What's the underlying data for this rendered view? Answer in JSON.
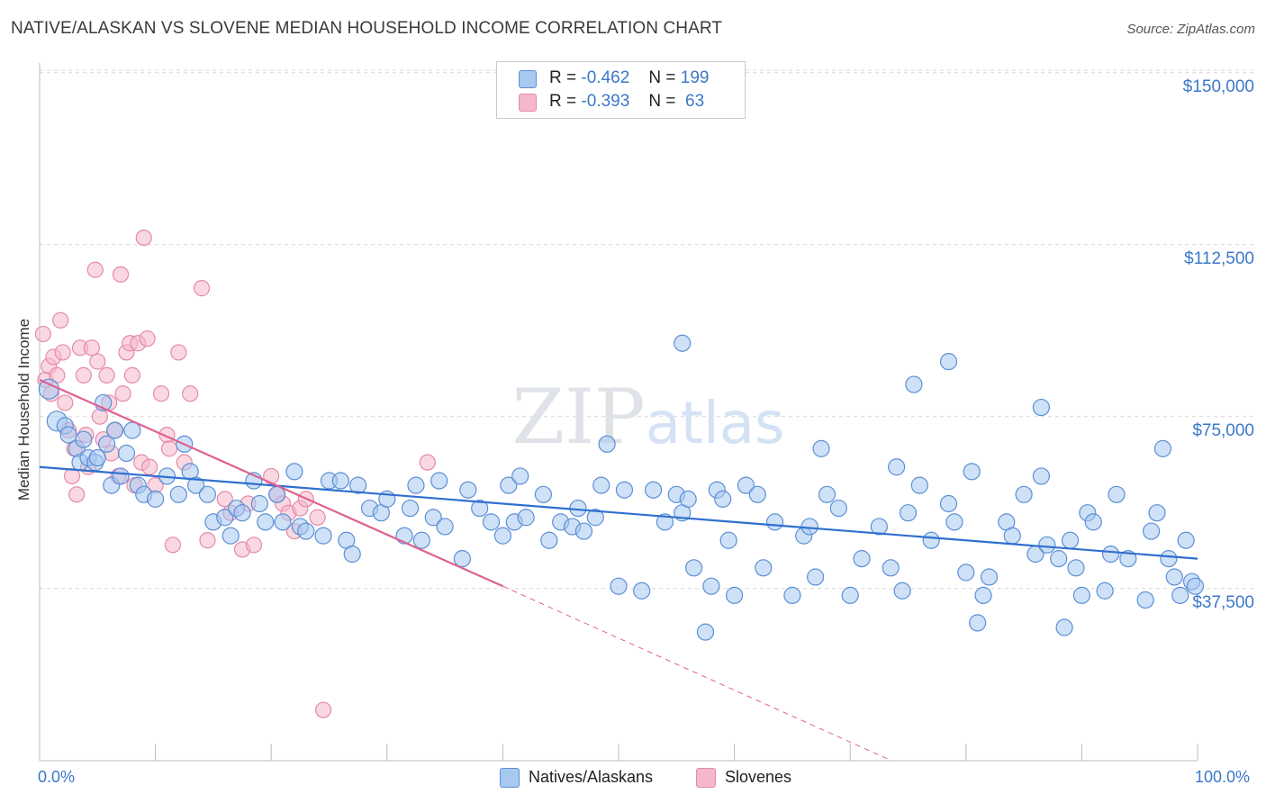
{
  "title": "NATIVE/ALASKAN VS SLOVENE MEDIAN HOUSEHOLD INCOME CORRELATION CHART",
  "source": "Source: ZipAtlas.com",
  "watermark": "ZIPatlas",
  "colors": {
    "blue_fill": "#a8c8f0",
    "blue_stroke": "#5b8fd6",
    "blue_line": "#2f6fcf",
    "pink_fill": "#f5b8cb",
    "pink_stroke": "#e58aa8",
    "pink_line": "#e0608f",
    "tick_text": "#3b78c9",
    "grid": "#d8d8d8"
  },
  "legend": {
    "rows": [
      {
        "r_label": "R =",
        "r_value": "-0.462",
        "n_label": "N =",
        "n_value": "199"
      },
      {
        "r_label": "R =",
        "r_value": "-0.393",
        "n_label": "N =",
        "n_value": " 63"
      }
    ]
  },
  "bottom_legend": [
    "Natives/Alaskans",
    "Slovenes"
  ],
  "chart_data": {
    "type": "scatter",
    "title": "NATIVE/ALASKAN VS SLOVENE MEDIAN HOUSEHOLD INCOME CORRELATION CHART",
    "xlabel": "",
    "ylabel": "Median Household Income",
    "x_tick_labels": [
      "0.0%",
      "100.0%"
    ],
    "y_tick_labels": [
      "$150,000",
      "$112,500",
      "$75,000",
      "$37,500"
    ],
    "y_ticks": [
      150000,
      112500,
      75000,
      37500
    ],
    "xlim": [
      0,
      100
    ],
    "ylim": [
      0,
      154000
    ],
    "grid": true,
    "legend_position": "top-center",
    "series": [
      {
        "name": "Natives/Alaskans",
        "r": -0.462,
        "n": 199,
        "trend": {
          "x0": 0,
          "y0": 64000,
          "x1": 100,
          "y1": 44000
        },
        "points": [
          [
            0.8,
            81
          ],
          [
            1.5,
            74
          ],
          [
            2.2,
            73
          ],
          [
            2.5,
            71
          ],
          [
            3.2,
            68
          ],
          [
            3.5,
            65
          ],
          [
            3.8,
            70
          ],
          [
            4.2,
            66
          ],
          [
            4.8,
            65
          ],
          [
            5.0,
            66
          ],
          [
            5.5,
            78
          ],
          [
            5.8,
            69
          ],
          [
            6.2,
            60
          ],
          [
            6.5,
            72
          ],
          [
            7.0,
            62
          ],
          [
            7.5,
            67
          ],
          [
            8.0,
            72
          ],
          [
            8.5,
            60
          ],
          [
            9.0,
            58
          ],
          [
            10.0,
            57
          ],
          [
            11.0,
            62
          ],
          [
            12.0,
            58
          ],
          [
            12.5,
            69
          ],
          [
            13.0,
            63
          ],
          [
            13.5,
            60
          ],
          [
            14.5,
            58
          ],
          [
            15.0,
            52
          ],
          [
            16.0,
            53
          ],
          [
            16.5,
            49
          ],
          [
            17.0,
            55
          ],
          [
            17.5,
            54
          ],
          [
            18.5,
            61
          ],
          [
            19.0,
            56
          ],
          [
            19.5,
            52
          ],
          [
            20.5,
            58
          ],
          [
            21.0,
            52
          ],
          [
            22.0,
            63
          ],
          [
            22.5,
            51
          ],
          [
            23.0,
            50
          ],
          [
            24.5,
            49
          ],
          [
            25.0,
            61
          ],
          [
            26.0,
            61
          ],
          [
            26.5,
            48
          ],
          [
            27.0,
            45
          ],
          [
            27.5,
            60
          ],
          [
            28.5,
            55
          ],
          [
            29.5,
            54
          ],
          [
            30.0,
            57
          ],
          [
            31.5,
            49
          ],
          [
            32.0,
            55
          ],
          [
            32.5,
            60
          ],
          [
            33.0,
            48
          ],
          [
            34.0,
            53
          ],
          [
            34.5,
            61
          ],
          [
            35.0,
            51
          ],
          [
            36.5,
            44
          ],
          [
            37.0,
            59
          ],
          [
            38.0,
            55
          ],
          [
            39.0,
            52
          ],
          [
            40.0,
            49
          ],
          [
            40.5,
            60
          ],
          [
            41.0,
            52
          ],
          [
            41.5,
            62
          ],
          [
            42.0,
            53
          ],
          [
            43.5,
            58
          ],
          [
            44.0,
            48
          ],
          [
            45.0,
            52
          ],
          [
            46.0,
            51
          ],
          [
            46.5,
            55
          ],
          [
            47.0,
            50
          ],
          [
            48.0,
            53
          ],
          [
            48.5,
            60
          ],
          [
            49.0,
            69
          ],
          [
            50.5,
            59
          ],
          [
            50.0,
            38
          ],
          [
            52.0,
            37
          ],
          [
            53.0,
            59
          ],
          [
            54.0,
            52
          ],
          [
            55.0,
            58
          ],
          [
            55.5,
            54
          ],
          [
            55.5,
            91
          ],
          [
            56.0,
            57
          ],
          [
            56.5,
            42
          ],
          [
            57.5,
            28
          ],
          [
            58.0,
            38
          ],
          [
            58.5,
            59
          ],
          [
            59.0,
            57
          ],
          [
            59.5,
            48
          ],
          [
            60.0,
            36
          ],
          [
            61.0,
            60
          ],
          [
            62.0,
            58
          ],
          [
            62.5,
            42
          ],
          [
            63.5,
            52
          ],
          [
            65.0,
            36
          ],
          [
            66.0,
            49
          ],
          [
            66.5,
            51
          ],
          [
            67.0,
            40
          ],
          [
            67.5,
            68
          ],
          [
            68.0,
            58
          ],
          [
            69.0,
            55
          ],
          [
            70.0,
            36
          ],
          [
            71.0,
            44
          ],
          [
            72.5,
            51
          ],
          [
            73.5,
            42
          ],
          [
            74.0,
            64
          ],
          [
            74.5,
            37
          ],
          [
            75.0,
            54
          ],
          [
            75.5,
            82
          ],
          [
            76.0,
            60
          ],
          [
            77.0,
            48
          ],
          [
            78.5,
            56
          ],
          [
            78.5,
            87
          ],
          [
            79.0,
            52
          ],
          [
            80.0,
            41
          ],
          [
            80.5,
            63
          ],
          [
            81.0,
            30
          ],
          [
            81.5,
            36
          ],
          [
            82.0,
            40
          ],
          [
            83.5,
            52
          ],
          [
            84.0,
            49
          ],
          [
            85.0,
            58
          ],
          [
            86.0,
            45
          ],
          [
            86.5,
            62
          ],
          [
            86.5,
            77
          ],
          [
            87.0,
            47
          ],
          [
            88.0,
            44
          ],
          [
            88.5,
            29
          ],
          [
            89.0,
            48
          ],
          [
            89.5,
            42
          ],
          [
            90.0,
            36
          ],
          [
            90.5,
            54
          ],
          [
            91.0,
            52
          ],
          [
            92.0,
            37
          ],
          [
            92.5,
            45
          ],
          [
            93.0,
            58
          ],
          [
            94.0,
            44
          ],
          [
            95.5,
            35
          ],
          [
            96.0,
            50
          ],
          [
            96.5,
            54
          ],
          [
            97.0,
            68
          ],
          [
            97.5,
            44
          ],
          [
            98.0,
            40
          ],
          [
            98.5,
            36
          ],
          [
            99.0,
            48
          ],
          [
            99.5,
            39
          ],
          [
            99.8,
            38
          ]
        ],
        "points_note": "x in percent of axis, y in thousands of dollars"
      },
      {
        "name": "Slovenes",
        "r": -0.393,
        "n": 63,
        "trend": {
          "x0": 0,
          "y0": 83000,
          "x1": 40,
          "y1": 38000,
          "dash_to_x": 100,
          "dash_to_y": -30000
        },
        "points": [
          [
            0.3,
            93
          ],
          [
            0.5,
            83
          ],
          [
            0.8,
            86
          ],
          [
            1.0,
            80
          ],
          [
            1.2,
            88
          ],
          [
            1.5,
            84
          ],
          [
            1.8,
            96
          ],
          [
            2.0,
            89
          ],
          [
            2.2,
            78
          ],
          [
            2.5,
            72
          ],
          [
            2.8,
            62
          ],
          [
            3.0,
            68
          ],
          [
            3.2,
            58
          ],
          [
            3.5,
            90
          ],
          [
            3.8,
            84
          ],
          [
            4.0,
            71
          ],
          [
            4.2,
            64
          ],
          [
            4.5,
            90
          ],
          [
            4.8,
            107
          ],
          [
            5.0,
            87
          ],
          [
            5.2,
            75
          ],
          [
            5.5,
            70
          ],
          [
            5.8,
            84
          ],
          [
            6.0,
            78
          ],
          [
            6.2,
            67
          ],
          [
            6.5,
            72
          ],
          [
            6.8,
            62
          ],
          [
            7.0,
            106
          ],
          [
            7.2,
            80
          ],
          [
            7.5,
            89
          ],
          [
            7.8,
            91
          ],
          [
            8.0,
            84
          ],
          [
            8.2,
            60
          ],
          [
            8.5,
            91
          ],
          [
            8.8,
            65
          ],
          [
            9.0,
            114
          ],
          [
            9.3,
            92
          ],
          [
            9.5,
            64
          ],
          [
            10.0,
            60
          ],
          [
            10.5,
            80
          ],
          [
            11.0,
            71
          ],
          [
            11.2,
            68
          ],
          [
            11.5,
            47
          ],
          [
            12.0,
            89
          ],
          [
            12.5,
            65
          ],
          [
            13.0,
            80
          ],
          [
            14.0,
            103
          ],
          [
            14.5,
            48
          ],
          [
            16.0,
            57
          ],
          [
            16.5,
            54
          ],
          [
            17.5,
            46
          ],
          [
            18.0,
            56
          ],
          [
            18.5,
            47
          ],
          [
            20.0,
            62
          ],
          [
            20.5,
            58
          ],
          [
            21.0,
            56
          ],
          [
            21.5,
            54
          ],
          [
            22.0,
            50
          ],
          [
            22.5,
            55
          ],
          [
            23.0,
            57
          ],
          [
            24.0,
            53
          ],
          [
            24.5,
            11
          ],
          [
            33.5,
            65
          ]
        ],
        "points_note": "x in percent of axis, y in thousands of dollars"
      }
    ]
  }
}
